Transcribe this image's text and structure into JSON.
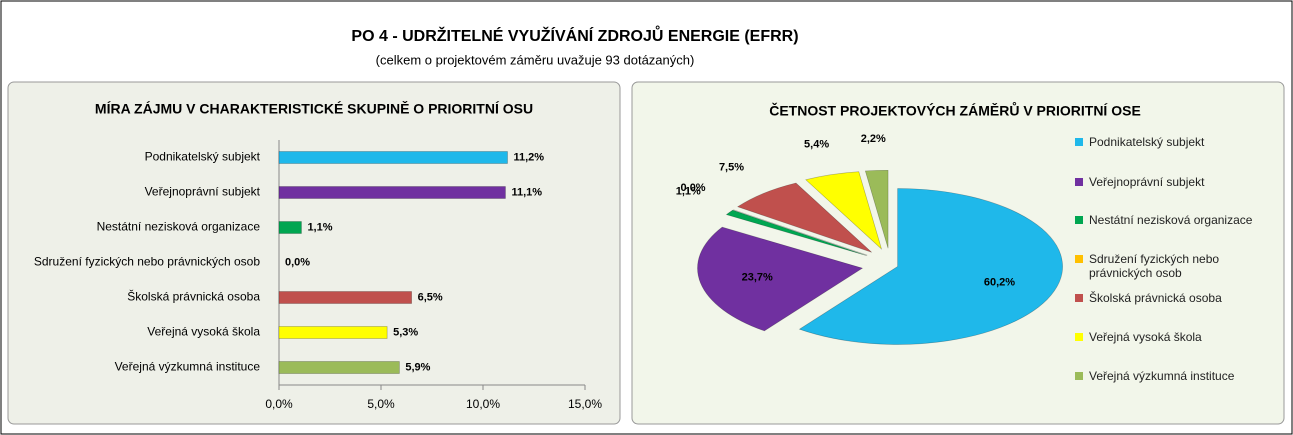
{
  "header": {
    "title": "PO 4 - UDRŽITELNÉ VYUŽÍVÁNÍ ZDROJŮ ENERGIE (EFRR)",
    "subtitle": "(celkem o projektovém záměru uvažuje 93 dotázaných)"
  },
  "chart_data": [
    {
      "type": "hbar",
      "title": "MÍRA ZÁJMU V CHARAKTERISTICKÉ SKUPINĚ O PRIORITNÍ OSU",
      "categories": [
        "Podnikatelský subjekt",
        "Veřejnoprávní subjekt",
        "Nestátní nezisková organizace",
        "Sdružení fyzických nebo právnických osob",
        "Školská právnická osoba",
        "Veřejná vysoká škola",
        "Veřejná výzkumná instituce"
      ],
      "values": [
        11.2,
        11.1,
        1.1,
        0.0,
        6.5,
        5.3,
        5.9
      ],
      "value_labels": [
        "11,2%",
        "11,1%",
        "1,1%",
        "0,0%",
        "6,5%",
        "5,3%",
        "5,9%"
      ],
      "colors": [
        "#1fb8ea",
        "#7030a0",
        "#00a651",
        "#d9963f",
        "#c0504d",
        "#ffff00",
        "#9bbb59"
      ],
      "xlim": [
        0,
        15
      ],
      "xticks": [
        {
          "value": 0,
          "label": "0,0%"
        },
        {
          "value": 5,
          "label": "5,0%"
        },
        {
          "value": 10,
          "label": "10,0%"
        },
        {
          "value": 15,
          "label": "15,0%"
        }
      ]
    },
    {
      "type": "pie",
      "title": "ČETNOST PROJEKTOVÝCH ZÁMĚRŮ V PRIORITNÍ OSE",
      "categories": [
        "Podnikatelský subjekt",
        "Veřejnoprávní subjekt",
        "Nestátní nezisková organizace",
        "Sdružení fyzických nebo právnických osob",
        "Školská právnická osoba",
        "Veřejná vysoká škola",
        "Veřejná výzkumná instituce"
      ],
      "values": [
        60.2,
        23.7,
        1.1,
        0.0,
        7.5,
        5.4,
        2.2
      ],
      "value_labels": [
        "60,2%",
        "23,7%",
        "1,1%",
        "0,0%",
        "7,5%",
        "5,4%",
        "2,2%"
      ],
      "colors": [
        "#1fb8ea",
        "#7030a0",
        "#00a651",
        "#ffc000",
        "#c0504d",
        "#ffff00",
        "#9bbb59"
      ],
      "legend": "right"
    }
  ]
}
